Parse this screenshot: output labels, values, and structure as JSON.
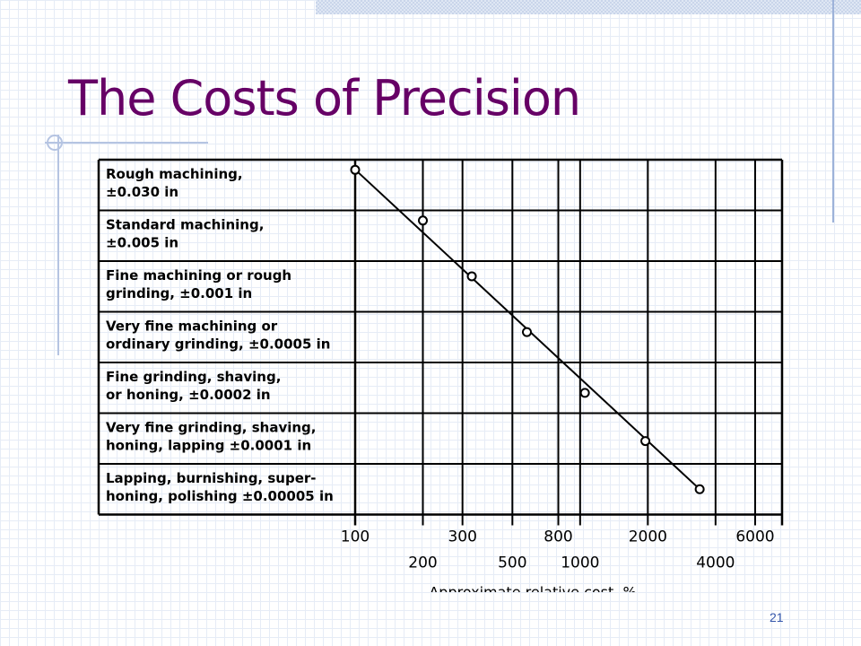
{
  "slide": {
    "title": "The Costs of Precision",
    "page_number": "21"
  },
  "chart_data": {
    "type": "line",
    "xlabel": "Approximate relative cost, %",
    "x_scale": "log",
    "x_ticks_top": [
      "100",
      "300",
      "800",
      "2000",
      "6000"
    ],
    "x_ticks_bottom": [
      "200",
      "500",
      "1000",
      "4000"
    ],
    "categories": [
      [
        "Rough machining,",
        "±0.030 in"
      ],
      [
        "Standard machining,",
        "±0.005 in"
      ],
      [
        "Fine machining or rough",
        "grinding, ±0.001 in"
      ],
      [
        "Very fine machining or",
        "ordinary grinding, ±0.0005 in"
      ],
      [
        "Fine grinding, shaving,",
        "or honing, ±0.0002 in"
      ],
      [
        "Very fine grinding, shaving,",
        "honing, lapping ±0.0001 in"
      ],
      [
        "Lapping, burnishing, super-",
        "honing, polishing ±0.00005 in"
      ]
    ],
    "points": [
      {
        "x": 100,
        "y": 0.2
      },
      {
        "x": 200,
        "y": 1.2
      },
      {
        "x": 330,
        "y": 2.3
      },
      {
        "x": 580,
        "y": 3.4
      },
      {
        "x": 1050,
        "y": 4.6
      },
      {
        "x": 1950,
        "y": 5.55
      },
      {
        "x": 3400,
        "y": 6.5
      }
    ],
    "grid": true
  }
}
